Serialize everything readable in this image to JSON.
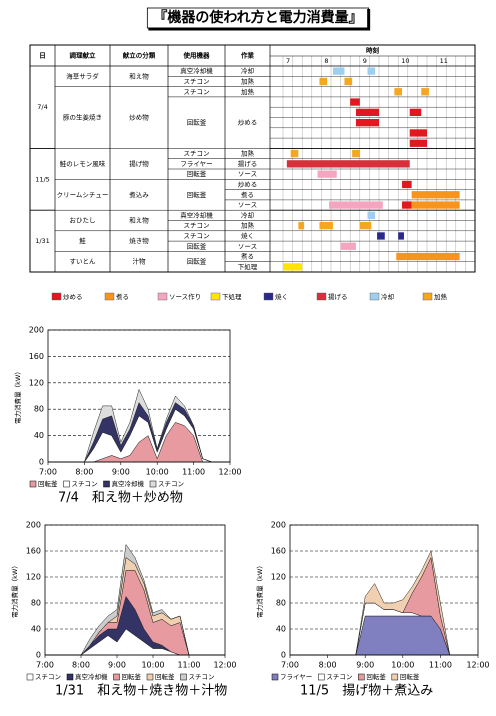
{
  "title": "『機器の使われ方と電力消費量』",
  "schedule": {
    "headers": [
      "日",
      "調理献立",
      "献立の分類",
      "使用機器",
      "作業",
      "時刻"
    ],
    "hours": [
      7,
      8,
      9,
      10,
      11
    ],
    "timelim": [
      7,
      12
    ],
    "rows": [
      {
        "date": "7/4",
        "dish": "海草サラダ",
        "category": "和え物",
        "equipment": "真空冷却機",
        "task": "冷却",
        "bars": [
          {
            "from": 8.3,
            "to": 8.6,
            "kind": 6
          },
          {
            "from": 9.2,
            "to": 9.4,
            "kind": 6
          }
        ]
      },
      {
        "equipment": "スチコン",
        "task": "加熱",
        "bars": [
          {
            "from": 7.95,
            "to": 8.15,
            "kind": 7
          },
          {
            "from": 8.6,
            "to": 8.8,
            "kind": 7
          }
        ]
      },
      {
        "dish": "豚の生姜焼き",
        "category": "炒め物",
        "equipment": "スチコン",
        "task": "加熱",
        "bars": [
          {
            "from": 9.9,
            "to": 10.1,
            "kind": 7
          },
          {
            "from": 10.6,
            "to": 10.8,
            "kind": 7
          }
        ]
      },
      {
        "equipment": "回転釜",
        "task": "炒める",
        "bars": [
          {
            "from": 8.75,
            "to": 9.0,
            "kind": 0
          }
        ]
      },
      {
        "bars": [
          {
            "from": 8.9,
            "to": 9.5,
            "kind": 0
          },
          {
            "from": 10.3,
            "to": 10.6,
            "kind": 0
          }
        ]
      },
      {
        "bars": [
          {
            "from": 8.9,
            "to": 9.5,
            "kind": 0
          }
        ]
      },
      {
        "bars": [
          {
            "from": 10.3,
            "to": 10.75,
            "kind": 0
          }
        ]
      },
      {
        "bars": [
          {
            "from": 10.3,
            "to": 10.75,
            "kind": 0
          }
        ]
      },
      {
        "date": "11/5",
        "dish": "鮭のレモン風味",
        "category": "揚げ物",
        "equipment": "スチコン",
        "task": "加熱",
        "bars": [
          {
            "from": 7.2,
            "to": 7.4,
            "kind": 7
          },
          {
            "from": 8.8,
            "to": 9.0,
            "kind": 7
          }
        ]
      },
      {
        "equipment": "フライヤー",
        "task": "揚げる",
        "bars": [
          {
            "from": 7.1,
            "to": 10.3,
            "kind": 5
          }
        ]
      },
      {
        "equipment": "回転釜",
        "task": "ソース",
        "bars": [
          {
            "from": 7.9,
            "to": 8.4,
            "kind": 2
          }
        ]
      },
      {
        "dish": "クリームシチュー",
        "category": "煮込み",
        "equipment": "回転釜",
        "task": "炒める",
        "bars": [
          {
            "from": 10.1,
            "to": 10.35,
            "kind": 0
          }
        ]
      },
      {
        "task": "煮る",
        "bars": [
          {
            "from": 10.35,
            "to": 11.6,
            "kind": 1
          }
        ]
      },
      {
        "task": "ソース",
        "bars": [
          {
            "from": 8.2,
            "to": 9.6,
            "kind": 2
          },
          {
            "from": 10.1,
            "to": 10.35,
            "kind": 0
          },
          {
            "from": 10.35,
            "to": 11.6,
            "kind": 1
          }
        ]
      },
      {
        "date": "1/31",
        "dish": "おひたし",
        "category": "和え物",
        "equipment": "真空冷却機",
        "task": "冷却",
        "bars": [
          {
            "from": 9.2,
            "to": 9.4,
            "kind": 6
          }
        ]
      },
      {
        "equipment": "スチコン",
        "task": "加熱",
        "bars": [
          {
            "from": 7.4,
            "to": 7.55,
            "kind": 7
          },
          {
            "from": 7.95,
            "to": 8.3,
            "kind": 7
          },
          {
            "from": 9.0,
            "to": 9.3,
            "kind": 7
          }
        ]
      },
      {
        "dish": "鮭",
        "category": "焼き物",
        "equipment": "スチコン",
        "task": "焼く",
        "bars": [
          {
            "from": 9.45,
            "to": 9.65,
            "kind": 4
          },
          {
            "from": 10.0,
            "to": 10.15,
            "kind": 4
          }
        ]
      },
      {
        "equipment": "回転釜",
        "task": "ソース",
        "bars": [
          {
            "from": 8.5,
            "to": 8.9,
            "kind": 2
          }
        ]
      },
      {
        "dish": "すいとん",
        "category": "汁物",
        "equipment": "回転釜",
        "task": "煮る",
        "bars": [
          {
            "from": 9.95,
            "to": 11.6,
            "kind": 1
          }
        ]
      },
      {
        "task": "下処理",
        "bars": [
          {
            "from": 7.0,
            "to": 7.5,
            "kind": 3
          }
        ]
      }
    ],
    "legend": [
      {
        "label": "炒める",
        "color": "#e0181f"
      },
      {
        "label": "煮る",
        "color": "#f7941d"
      },
      {
        "label": "ソース作り",
        "color": "#f4a6c0"
      },
      {
        "label": "下処理",
        "color": "#ffe400"
      },
      {
        "label": "焼く",
        "color": "#2a2a8a"
      },
      {
        "label": "揚げる",
        "color": "#d8303a"
      },
      {
        "label": "冷却",
        "color": "#9fcfee"
      },
      {
        "label": "加熱",
        "color": "#f5a623"
      }
    ]
  },
  "chart_data": [
    {
      "type": "area",
      "caption": "7/4　和え物＋炒め物",
      "ylabel": "電力消費量（kW）",
      "x": [
        7,
        7.25,
        7.5,
        7.75,
        8,
        8.25,
        8.5,
        8.75,
        9,
        9.25,
        9.5,
        9.75,
        10,
        10.25,
        10.5,
        10.75,
        11,
        11.25,
        11.5,
        11.75,
        12
      ],
      "xlim": [
        7,
        12
      ],
      "xticks": [
        {
          "value": 7,
          "label": "7:00"
        },
        {
          "value": 8,
          "label": "8:00"
        },
        {
          "value": 9,
          "label": "9:00"
        },
        {
          "value": 10,
          "label": "10:00"
        },
        {
          "value": 11,
          "label": "11:00"
        },
        {
          "value": 12,
          "label": "12:00"
        }
      ],
      "ylim": [
        0,
        200
      ],
      "yticks": [
        0,
        40,
        80,
        120,
        160,
        200
      ],
      "grid": true,
      "series": [
        {
          "name": "回転釜",
          "color": "#e79ba0",
          "values": [
            0,
            0,
            0,
            0,
            0,
            0,
            5,
            10,
            5,
            10,
            30,
            40,
            5,
            40,
            60,
            55,
            40,
            0,
            0,
            0,
            0
          ]
        },
        {
          "name": "スチコン",
          "color": "#ffffff",
          "values": [
            0,
            0,
            0,
            0,
            0,
            20,
            40,
            30,
            10,
            30,
            40,
            20,
            10,
            10,
            20,
            15,
            10,
            5,
            0,
            0,
            0
          ]
        },
        {
          "name": "真空冷却機",
          "color": "#333366",
          "values": [
            0,
            0,
            0,
            0,
            0,
            10,
            20,
            30,
            10,
            10,
            20,
            10,
            5,
            10,
            10,
            10,
            5,
            0,
            0,
            0,
            0
          ]
        },
        {
          "name": "スチコン",
          "color": "#dddddd",
          "values": [
            0,
            0,
            0,
            0,
            0,
            15,
            20,
            15,
            5,
            10,
            20,
            10,
            0,
            5,
            10,
            5,
            0,
            0,
            0,
            0,
            0
          ]
        }
      ]
    },
    {
      "type": "area",
      "caption": "1/31　和え物＋焼き物＋汁物",
      "ylabel": "電力消費量（kW）",
      "x": [
        7,
        7.25,
        7.5,
        7.75,
        8,
        8.25,
        8.5,
        8.75,
        9,
        9.25,
        9.5,
        9.75,
        10,
        10.25,
        10.5,
        10.75,
        11,
        11.25,
        11.5,
        11.75,
        12
      ],
      "xlim": [
        7,
        12
      ],
      "xticks": [
        {
          "value": 7,
          "label": "7:00"
        },
        {
          "value": 8,
          "label": "8:00"
        },
        {
          "value": 9,
          "label": "9:00"
        },
        {
          "value": 10,
          "label": "10:00"
        },
        {
          "value": 11,
          "label": "11:00"
        },
        {
          "value": 12,
          "label": "12:00"
        }
      ],
      "ylim": [
        0,
        200
      ],
      "yticks": [
        0,
        40,
        80,
        120,
        160,
        200
      ],
      "grid": true,
      "series": [
        {
          "name": "スチコン",
          "color": "#ffffff",
          "values": [
            0,
            0,
            0,
            0,
            0,
            10,
            20,
            30,
            20,
            40,
            30,
            20,
            10,
            10,
            5,
            0,
            0,
            0,
            0,
            0,
            0
          ]
        },
        {
          "name": "真空冷却機",
          "color": "#333366",
          "values": [
            0,
            0,
            0,
            0,
            0,
            5,
            10,
            10,
            20,
            50,
            40,
            20,
            10,
            5,
            0,
            0,
            0,
            0,
            0,
            0,
            0
          ]
        },
        {
          "name": "回転釜",
          "color": "#e79ba0",
          "values": [
            0,
            0,
            0,
            0,
            0,
            0,
            5,
            10,
            10,
            40,
            60,
            60,
            30,
            40,
            40,
            50,
            0,
            0,
            0,
            0,
            0
          ]
        },
        {
          "name": "回転釜",
          "color": "#f0d0b0",
          "values": [
            0,
            0,
            0,
            0,
            0,
            0,
            0,
            0,
            10,
            20,
            10,
            10,
            10,
            10,
            10,
            10,
            0,
            0,
            0,
            0,
            0
          ]
        },
        {
          "name": "スチコン",
          "color": "#cccccc",
          "values": [
            0,
            0,
            0,
            0,
            0,
            10,
            10,
            10,
            10,
            20,
            10,
            5,
            5,
            5,
            0,
            0,
            0,
            0,
            0,
            0,
            0
          ]
        }
      ]
    },
    {
      "type": "area",
      "caption": "11/5　揚げ物＋煮込み",
      "ylabel": "電力消費量（kW）",
      "x": [
        7,
        7.25,
        7.5,
        7.75,
        8,
        8.25,
        8.5,
        8.75,
        9,
        9.25,
        9.5,
        9.75,
        10,
        10.25,
        10.5,
        10.75,
        11,
        11.25,
        11.5,
        11.75,
        12
      ],
      "xlim": [
        7,
        12
      ],
      "xticks": [
        {
          "value": 7,
          "label": "7:00"
        },
        {
          "value": 8,
          "label": "8:00"
        },
        {
          "value": 9,
          "label": "9:00"
        },
        {
          "value": 10,
          "label": "10:00"
        },
        {
          "value": 11,
          "label": "11:00"
        },
        {
          "value": 12,
          "label": "12:00"
        }
      ],
      "ylim": [
        0,
        200
      ],
      "yticks": [
        0,
        40,
        80,
        120,
        160,
        200
      ],
      "grid": true,
      "series": [
        {
          "name": "フライヤー",
          "color": "#8080c0",
          "values": [
            0,
            0,
            0,
            0,
            0,
            0,
            0,
            0,
            60,
            60,
            60,
            60,
            60,
            60,
            60,
            60,
            40,
            0,
            0,
            0,
            0
          ]
        },
        {
          "name": "スチコン",
          "color": "#ffffff",
          "values": [
            0,
            0,
            0,
            0,
            0,
            0,
            0,
            0,
            20,
            20,
            10,
            10,
            5,
            5,
            0,
            0,
            0,
            0,
            0,
            0,
            0
          ]
        },
        {
          "name": "回転釜",
          "color": "#e79ba0",
          "values": [
            0,
            0,
            0,
            0,
            0,
            0,
            0,
            0,
            0,
            0,
            0,
            0,
            0,
            30,
            60,
            90,
            20,
            0,
            0,
            0,
            0
          ]
        },
        {
          "name": "回転釜",
          "color": "#f0d0b0",
          "values": [
            0,
            0,
            0,
            0,
            0,
            0,
            0,
            0,
            10,
            30,
            10,
            10,
            20,
            10,
            10,
            10,
            20,
            0,
            0,
            0,
            0
          ]
        }
      ]
    }
  ]
}
